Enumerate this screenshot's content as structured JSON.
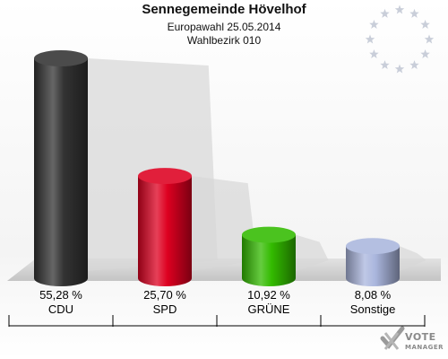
{
  "header": {
    "title": "Sennegemeinde Hövelhof",
    "subtitle_line1": "Europawahl 25.05.2014",
    "subtitle_line2": "Wahlbezirk 010"
  },
  "logo": {
    "line1": "VOTE",
    "line2": "MANAGER"
  },
  "chart_data": {
    "type": "bar",
    "title": "Sennegemeinde Hövelhof",
    "subtitle": [
      "Europawahl 25.05.2014",
      "Wahlbezirk 010"
    ],
    "categories": [
      "CDU",
      "SPD",
      "GRÜNE",
      "Sonstige"
    ],
    "values": [
      55.28,
      25.7,
      10.92,
      8.08
    ],
    "value_labels": [
      "55,28 %",
      "25,70 %",
      "10,92 %",
      "8,08 %"
    ],
    "colors": [
      "#333333",
      "#dd0020",
      "#33bb00",
      "#aab6dd"
    ],
    "unit": "%",
    "ylim": [
      0,
      55.28
    ],
    "grid": false,
    "legend": "none"
  }
}
